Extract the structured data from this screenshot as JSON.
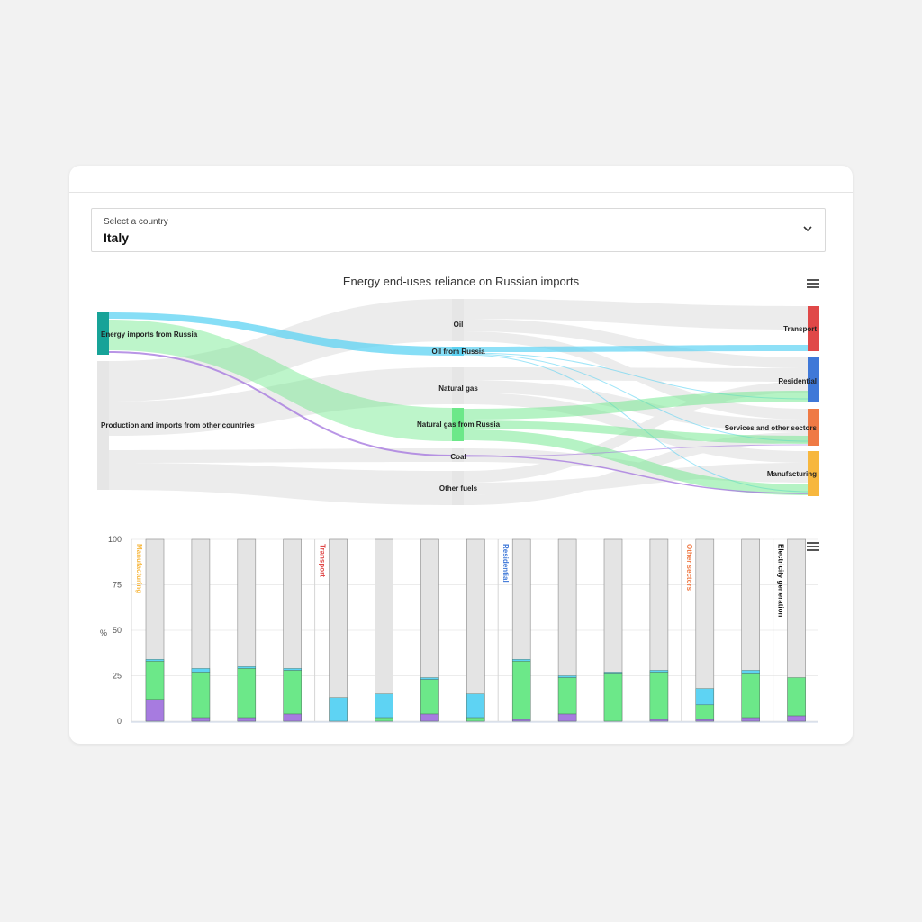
{
  "selector": {
    "label": "Select a country",
    "value": "Italy"
  },
  "colors": {
    "russia_source": "#17a398",
    "oil_russia": "#5ed3f3",
    "gas_russia": "#6ce889",
    "coal_russia": "#a77be0",
    "other_flow": "#ececec",
    "transport": "#e04848",
    "residential": "#3f78d8",
    "services": "#ef7a45",
    "manufacturing": "#f7b73e",
    "electricity": "#111111"
  },
  "chart_data": [
    {
      "type": "sankey",
      "title": "Energy end-uses reliance on Russian imports",
      "nodes": [
        {
          "id": "russia",
          "label": "Energy imports from Russia"
        },
        {
          "id": "other_src",
          "label": "Production and imports from other countries"
        },
        {
          "id": "oil",
          "label": "Oil"
        },
        {
          "id": "oil_ru",
          "label": "Oil from Russia"
        },
        {
          "id": "gas",
          "label": "Natural gas"
        },
        {
          "id": "gas_ru",
          "label": "Natural gas from Russia"
        },
        {
          "id": "coal",
          "label": "Coal"
        },
        {
          "id": "other_fuels",
          "label": "Other fuels"
        },
        {
          "id": "transport",
          "label": "Transport"
        },
        {
          "id": "residential",
          "label": "Residential"
        },
        {
          "id": "services",
          "label": "Services and other sectors"
        },
        {
          "id": "manufacturing",
          "label": "Manufacturing"
        }
      ]
    },
    {
      "type": "bar",
      "stacked": true,
      "ylabel": "%",
      "ylim": [
        0,
        100
      ],
      "yticks": [
        0,
        25,
        50,
        75,
        100
      ],
      "groups": [
        {
          "name": "Manufacturing",
          "color": "#f7b73e",
          "bars": 4
        },
        {
          "name": "Transport",
          "color": "#e04848",
          "bars": 4
        },
        {
          "name": "Residential",
          "color": "#3f78d8",
          "bars": 4
        },
        {
          "name": "Other sectors",
          "color": "#ef7a45",
          "bars": 2
        },
        {
          "name": "Electricity generation",
          "color": "#111111",
          "bars": 1
        }
      ],
      "series": [
        {
          "key": "coal",
          "color": "#a77be0",
          "values": [
            12,
            2,
            2,
            4,
            0,
            0,
            4,
            0,
            1,
            4,
            0,
            1,
            1,
            2,
            3
          ]
        },
        {
          "key": "gas",
          "color": "#6ce889",
          "values": [
            21,
            25,
            27,
            24,
            0,
            2,
            19,
            2,
            32,
            20,
            26,
            26,
            8,
            24,
            21
          ]
        },
        {
          "key": "oil",
          "color": "#5ed3f3",
          "values": [
            1,
            2,
            1,
            1,
            13,
            13,
            1,
            13,
            1,
            1,
            1,
            1,
            9,
            2,
            0
          ]
        }
      ],
      "total": 100
    }
  ]
}
